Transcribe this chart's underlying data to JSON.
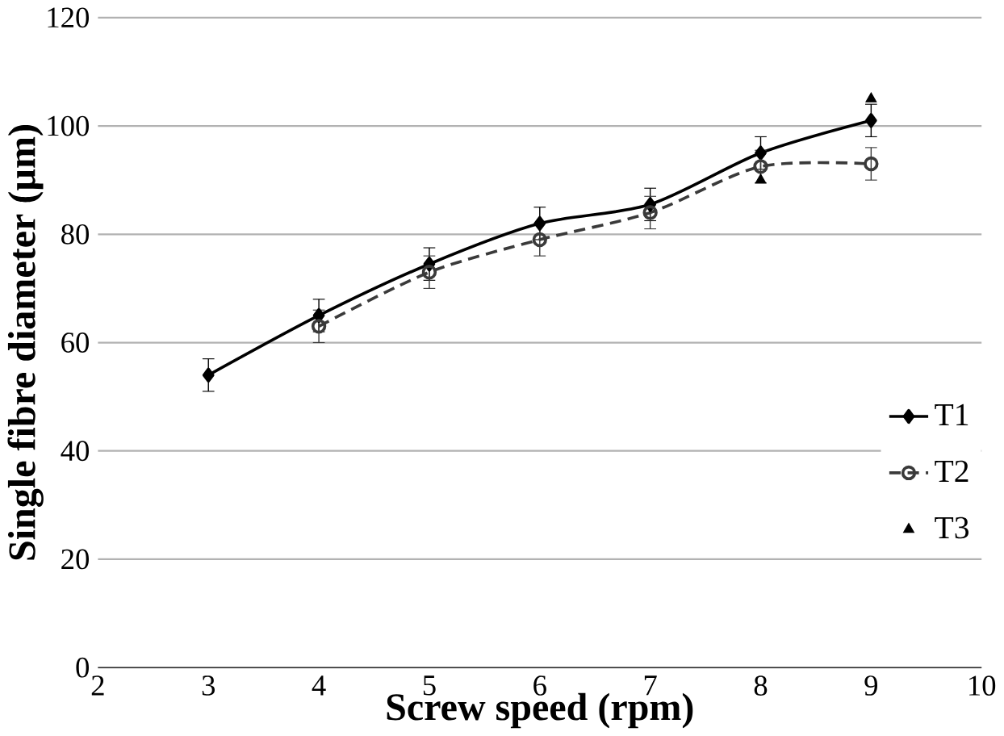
{
  "chart_data": {
    "type": "line",
    "xlabel": "Screw speed (rpm)",
    "ylabel": "Single fibre diameter (µm)",
    "xlim": [
      2,
      10
    ],
    "xticks": [
      2,
      3,
      4,
      5,
      6,
      7,
      8,
      9,
      10
    ],
    "ylim": [
      0,
      120
    ],
    "yticks": [
      0,
      20,
      40,
      60,
      80,
      100,
      120
    ],
    "grid": "y",
    "legend": "right",
    "series": [
      {
        "name": "T1",
        "color": "#000000",
        "x": [
          3,
          4,
          5,
          6,
          7,
          8,
          9
        ],
        "values": [
          54,
          65,
          74.5,
          82,
          85.5,
          95,
          101
        ],
        "errors": [
          3,
          3,
          3,
          3,
          3,
          3,
          3
        ],
        "marker": "diamond",
        "line_style": "solid"
      },
      {
        "name": "T2",
        "color": "#3a3a3a",
        "x": [
          4,
          5,
          6,
          7,
          8,
          9
        ],
        "values": [
          63,
          73,
          79,
          84,
          92.5,
          93
        ],
        "errors": [
          3,
          3,
          3,
          3,
          3,
          3
        ],
        "marker": "circle",
        "line_style": "dashed"
      },
      {
        "name": "T3",
        "type": "scatter",
        "color": "#000000",
        "x": [
          8,
          9
        ],
        "values": [
          90,
          105
        ],
        "marker": "triangle"
      }
    ]
  }
}
